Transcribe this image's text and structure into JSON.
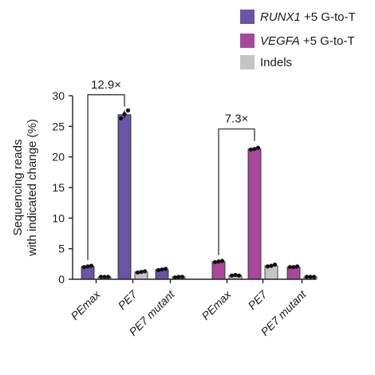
{
  "chart_data": {
    "type": "bar",
    "ylabel_line1": "Sequencing reads",
    "ylabel_line2": "with indicated change (%)",
    "ylim": [
      0,
      30
    ],
    "yticks": [
      "0",
      "5",
      "10",
      "15",
      "20",
      "25",
      "30"
    ],
    "categories": [
      "PEmax",
      "PE7",
      "PE7 mutant",
      "PEmax",
      "PE7",
      "PE7 mutant"
    ],
    "series": [
      {
        "name": "RUNX1 +5 G-to-T",
        "gene": "RUNX1",
        "suffix": " +5 G-to-T",
        "color": "#6a54a6",
        "values": [
          2.1,
          26.9,
          1.6,
          null,
          null,
          null
        ],
        "replicates": [
          [
            2.0,
            2.1,
            2.2
          ],
          [
            26.3,
            27.0,
            27.6
          ],
          [
            1.5,
            1.6,
            1.7
          ],
          [],
          [],
          []
        ]
      },
      {
        "name": "VEGFA +5 G-to-T",
        "gene": "VEGFA",
        "suffix": " +5 G-to-T",
        "color": "#a8489a",
        "values": [
          null,
          null,
          null,
          2.9,
          21.3,
          2.0
        ],
        "replicates": [
          [],
          [],
          [],
          [
            2.8,
            2.9,
            3.0
          ],
          [
            21.2,
            21.3,
            21.5
          ],
          [
            2.0,
            2.0,
            2.1
          ]
        ]
      },
      {
        "name": "Indels",
        "gene": "",
        "suffix": "Indels",
        "color": "#c4c4c4",
        "values": [
          0.4,
          1.2,
          0.4,
          0.6,
          2.2,
          0.4
        ],
        "replicates": [
          [
            0.4,
            0.4,
            0.4
          ],
          [
            1.1,
            1.2,
            1.3
          ],
          [
            0.3,
            0.4,
            0.4
          ],
          [
            0.6,
            0.7,
            0.6
          ],
          [
            2.1,
            2.2,
            2.4
          ],
          [
            0.4,
            0.4,
            0.4
          ]
        ]
      }
    ],
    "annotations": [
      {
        "text": "12.9×",
        "from_group": 0,
        "to_group": 1
      },
      {
        "text": "7.3×",
        "from_group": 3,
        "to_group": 4
      }
    ]
  }
}
